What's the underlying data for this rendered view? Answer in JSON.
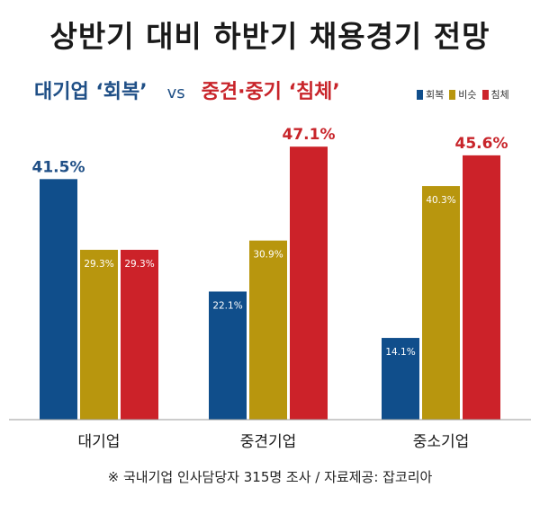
{
  "title": "상반기 대비 하반기 채용경기 전망",
  "subtitle": {
    "left": "대기업 ‘회복’",
    "vs": "vs",
    "right": "중견·중기 ‘침체’"
  },
  "colors": {
    "회복": "#104e8b",
    "비슷": "#b8960e",
    "침체": "#cc2229"
  },
  "footnote": "※ 국내기업 인사담당자 315명 조사 / 자료제공: 잡코리아",
  "chart_data": {
    "type": "bar",
    "categories": [
      "대기업",
      "중견기업",
      "중소기업"
    ],
    "series": [
      {
        "name": "회복",
        "values": [
          41.5,
          22.1,
          14.1
        ]
      },
      {
        "name": "비슷",
        "values": [
          29.3,
          30.9,
          40.3
        ]
      },
      {
        "name": "침체",
        "values": [
          29.3,
          47.1,
          45.6
        ]
      }
    ],
    "value_labels": [
      [
        "41.5%",
        "22.1%",
        "14.1%"
      ],
      [
        "29.3%",
        "30.9%",
        "40.3%"
      ],
      [
        "29.3%",
        "47.1%",
        "45.6%"
      ]
    ],
    "highlight": [
      [
        0
      ],
      [],
      [
        1,
        2
      ]
    ],
    "ylim": [
      0,
      50
    ],
    "legend": "top-right",
    "grid": false,
    "xlabel": "",
    "ylabel": ""
  }
}
